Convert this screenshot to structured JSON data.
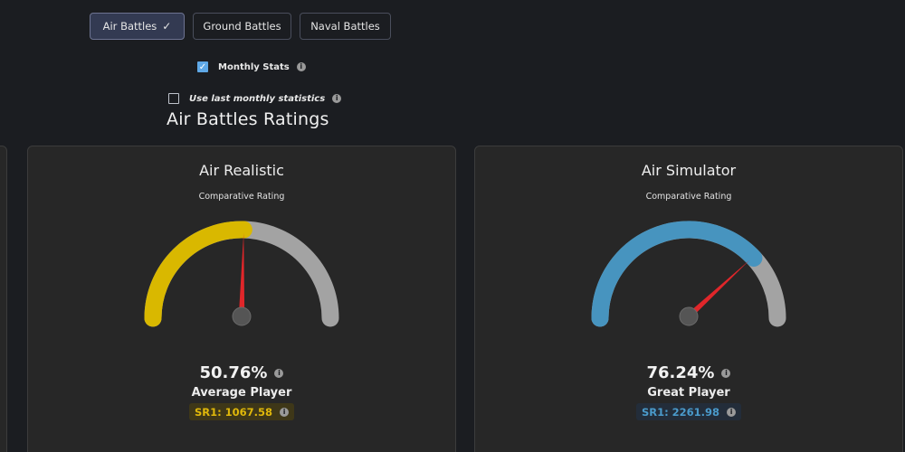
{
  "tabs": {
    "air": "Air Battles",
    "ground": "Ground Battles",
    "naval": "Naval Battles",
    "active_check": "✓"
  },
  "options": {
    "monthly_stats": {
      "label": "Monthly Stats",
      "checked": true
    },
    "use_last_monthly": {
      "label": "Use last monthly statistics",
      "checked": false
    }
  },
  "section_title": "Air Battles Ratings",
  "cards": {
    "air_realistic": {
      "title": "Air Realistic",
      "subtitle": "Comparative Rating",
      "percent": "50.76%",
      "percent_value": 50.76,
      "level": "Average Player",
      "sr": "SR1: 1067.58",
      "color": "#d9b800"
    },
    "air_simulator": {
      "title": "Air Simulator",
      "subtitle": "Comparative Rating",
      "percent": "76.24%",
      "percent_value": 76.24,
      "level": "Great Player",
      "sr": "SR1: 2261.98",
      "color": "#4794bf"
    }
  },
  "colors": {
    "background": "#1b1d21",
    "card": "#272727",
    "gauge_track": "#a3a3a3",
    "needle": "#e0262a",
    "checkbox_checked": "#5fa8e6"
  },
  "icons": {
    "info": "i",
    "check": "✓"
  }
}
